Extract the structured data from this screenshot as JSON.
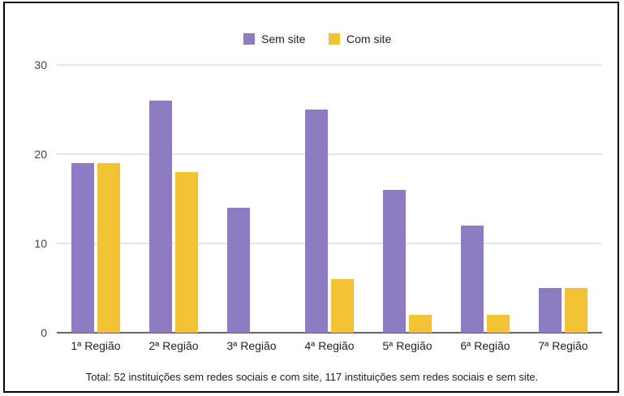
{
  "chart_data": {
    "type": "bar",
    "categories": [
      "1ª Região",
      "2ª Região",
      "3ª Região",
      "4ª Região",
      "5ª Região",
      "6ª Região",
      "7ª Região"
    ],
    "series": [
      {
        "name": "Sem site",
        "values": [
          19,
          26,
          14,
          25,
          16,
          12,
          5
        ],
        "color": "#8e7cc3"
      },
      {
        "name": "Com site",
        "values": [
          19,
          18,
          0,
          6,
          2,
          2,
          5
        ],
        "color": "#f1c232"
      }
    ],
    "ylim": [
      0,
      30
    ],
    "yticks": [
      0,
      10,
      20,
      30
    ],
    "grid": true,
    "legend": "top-center",
    "caption": "Total: 52 instituições sem redes sociais e com site, 117 instituições sem redes sociais e sem site."
  }
}
